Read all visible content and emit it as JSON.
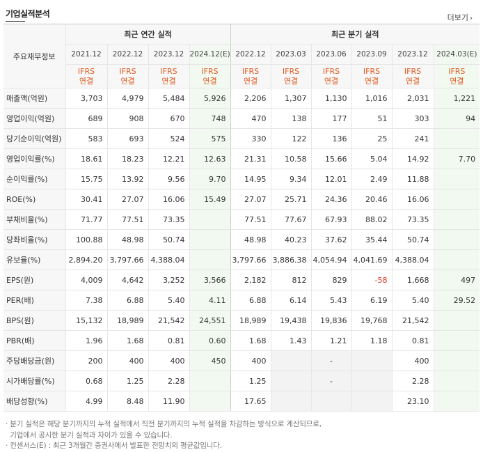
{
  "header": {
    "title": "기업실적분석",
    "more_label": "더보기",
    "more_icon": "chevron-right-icon"
  },
  "table": {
    "row_header_label": "주요재무정보",
    "group_annual": "최근 연간 실적",
    "group_quarter": "최근 분기 실적",
    "periods": [
      "2021.12",
      "2022.12",
      "2023.12",
      "2024.12(E)",
      "2022.12",
      "2023.03",
      "2023.06",
      "2023.09",
      "2023.12",
      "2024.03(E)"
    ],
    "basis_top": "IFRS",
    "basis_bottom": "연결",
    "rows": [
      {
        "label": "매출액(억원)",
        "values": [
          "3,703",
          "4,979",
          "5,484",
          "5,926",
          "2,206",
          "1,307",
          "1,130",
          "1,016",
          "2,031",
          "1,221"
        ]
      },
      {
        "label": "영업이익(억원)",
        "values": [
          "689",
          "908",
          "670",
          "748",
          "470",
          "138",
          "177",
          "51",
          "303",
          "94"
        ]
      },
      {
        "label": "당기순이익(억원)",
        "values": [
          "583",
          "693",
          "524",
          "575",
          "330",
          "122",
          "136",
          "25",
          "241",
          ""
        ]
      },
      {
        "label": "영업이익률(%)",
        "values": [
          "18.61",
          "18.23",
          "12.21",
          "12.63",
          "21.31",
          "10.58",
          "15.66",
          "5.04",
          "14.92",
          "7.70"
        ]
      },
      {
        "label": "순이익률(%)",
        "values": [
          "15.75",
          "13.92",
          "9.56",
          "9.70",
          "14.95",
          "9.34",
          "12.01",
          "2.49",
          "11.88",
          ""
        ]
      },
      {
        "label": "ROE(%)",
        "values": [
          "30.41",
          "27.07",
          "16.06",
          "15.49",
          "27.07",
          "25.71",
          "24.36",
          "20.46",
          "16.06",
          ""
        ]
      },
      {
        "label": "부채비율(%)",
        "values": [
          "71.77",
          "77.51",
          "73.35",
          "",
          "77.51",
          "77.67",
          "67.93",
          "88.02",
          "73.35",
          ""
        ]
      },
      {
        "label": "당좌비율(%)",
        "values": [
          "100.88",
          "48.98",
          "50.74",
          "",
          "48.98",
          "40.23",
          "37.62",
          "35.44",
          "50.74",
          ""
        ]
      },
      {
        "label": "유보율(%)",
        "values": [
          "2,894.20",
          "3,797.66",
          "4,388.04",
          "",
          "3,797.66",
          "3,886.38",
          "4,054.94",
          "4,041.69",
          "4,388.04",
          ""
        ]
      },
      {
        "label": "EPS(원)",
        "values": [
          "4,009",
          "4,642",
          "3,252",
          "3,566",
          "2,182",
          "812",
          "829",
          "-58",
          "1,668",
          "497"
        ]
      },
      {
        "label": "PER(배)",
        "values": [
          "7.38",
          "6.88",
          "5.40",
          "4.11",
          "6.88",
          "6.14",
          "5.43",
          "6.19",
          "5.40",
          "29.52"
        ]
      },
      {
        "label": "BPS(원)",
        "values": [
          "15,132",
          "18,989",
          "21,542",
          "24,551",
          "18,989",
          "19,438",
          "19,836",
          "19,768",
          "21,542",
          ""
        ]
      },
      {
        "label": "PBR(배)",
        "values": [
          "1.96",
          "1.68",
          "0.81",
          "0.60",
          "1.68",
          "1.43",
          "1.21",
          "1.18",
          "0.81",
          ""
        ]
      },
      {
        "label": "주당배당금(원)",
        "values": [
          "200",
          "400",
          "400",
          "450",
          "400",
          "",
          "-",
          "",
          "400",
          ""
        ]
      },
      {
        "label": "시가배당률(%)",
        "values": [
          "0.68",
          "1.25",
          "2.28",
          "",
          "1.25",
          "",
          "-",
          "",
          "2.28",
          ""
        ]
      },
      {
        "label": "배당성향(%)",
        "values": [
          "4.99",
          "8.48",
          "11.90",
          "",
          "17.65",
          "",
          "",
          "",
          "23.10",
          ""
        ]
      }
    ]
  },
  "notes": {
    "line1": "· 분기 실적은 해당 분기까지의 누적 실적에서 직전 분기까지의 누적 실적을 차감하는 방식으로 계산되므로,",
    "line2": "  기업에서 공시한 분기 실적과 차이가 있을 수 있습니다.",
    "line3": "· 컨센서스(E) : 최근 3개월간 증권사에서 발표한 전망치의 평균값입니다."
  },
  "colors": {
    "ifrs": "#e15a1f",
    "negative": "#e1321f",
    "estimate_bg": "#f2f9f1",
    "label_bg": "#f7f7f7"
  }
}
